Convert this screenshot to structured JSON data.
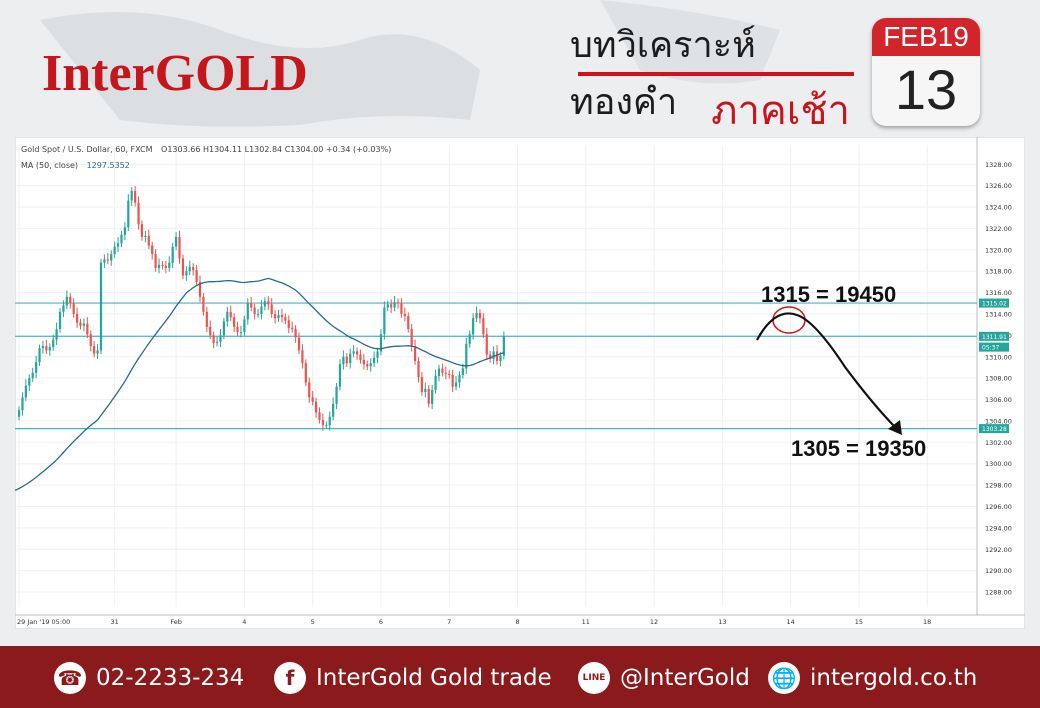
{
  "header": {
    "brand": "InterGOLD",
    "title_th": "บทวิเคราะห์ทองคำ",
    "subtitle_th": "ภาคเช้า",
    "calendar_month": "FEB19",
    "calendar_day": "13"
  },
  "chart_data": {
    "type": "line",
    "symbol_line": "Gold Spot / U.S. Dollar, 60, FXCM",
    "ohlc_text": "O1303.66  H1304.11  L1302.84  C1304.00  +0.34 (+0.03%)",
    "ma_label": "MA (50, close)",
    "ma_value": "1297.5352",
    "y_ticks": [
      "1328.00",
      "1326.00",
      "1324.00",
      "1322.00",
      "1320.00",
      "1318.00",
      "1316.00",
      "1314.00",
      "1312.00",
      "1310.00",
      "1308.00",
      "1306.00",
      "1304.00",
      "1302.00",
      "1300.00",
      "1298.00",
      "1296.00",
      "1294.00",
      "1292.00",
      "1290.00",
      "1288.00"
    ],
    "y_range": [
      1286.6,
      1329.8
    ],
    "x_ticks": [
      {
        "label": "29 Jan '19  05:00",
        "t": 0
      },
      {
        "label": "31",
        "t": 28
      },
      {
        "label": "Feb",
        "t": 46
      },
      {
        "label": "4",
        "t": 66
      },
      {
        "label": "5",
        "t": 86
      },
      {
        "label": "6",
        "t": 106
      },
      {
        "label": "7",
        "t": 126
      },
      {
        "label": "8",
        "t": 146
      },
      {
        "label": "11",
        "t": 166
      },
      {
        "label": "12",
        "t": 186
      },
      {
        "label": "13",
        "t": 206
      },
      {
        "label": "14",
        "t": 226
      },
      {
        "label": "15",
        "t": 246
      },
      {
        "label": "18",
        "t": 266
      }
    ],
    "x_range": [
      -0.6,
      280
    ],
    "price_badges": [
      {
        "label": "1315.02",
        "y": 1315.02,
        "color": "#26a69a"
      },
      {
        "label": "1311.91",
        "y": 1311.91,
        "color": "#26a69a"
      },
      {
        "label": "05:37",
        "y": 1310.9,
        "color": "#26a69a"
      },
      {
        "label": "1303.28",
        "y": 1303.28,
        "color": "#26a69a"
      }
    ],
    "hlines": [
      1315.02,
      1311.91,
      1303.28
    ],
    "close": [
      1305.0,
      1306.2,
      1307.3,
      1308.0,
      1308.5,
      1309.5,
      1310.8,
      1311.0,
      1310.6,
      1310.9,
      1311.6,
      1312.6,
      1314.2,
      1314.8,
      1315.6,
      1315.0,
      1314.0,
      1313.2,
      1312.9,
      1313.1,
      1312.1,
      1311.0,
      1310.3,
      1310.6,
      1318.8,
      1319.1,
      1319.0,
      1319.6,
      1320.3,
      1320.6,
      1321.4,
      1322.1,
      1324.6,
      1325.5,
      1324.4,
      1322.4,
      1321.2,
      1321.3,
      1320.4,
      1319.6,
      1318.3,
      1318.6,
      1318.5,
      1318.3,
      1318.8,
      1320.3,
      1321.2,
      1319.2,
      1317.6,
      1318.0,
      1318.4,
      1318.1,
      1317.0,
      1315.6,
      1314.2,
      1312.8,
      1312.0,
      1311.3,
      1311.4,
      1312.0,
      1313.3,
      1314.2,
      1313.7,
      1312.8,
      1312.3,
      1312.3,
      1313.5,
      1315.0,
      1314.6,
      1314.0,
      1314.0,
      1314.7,
      1315.2,
      1314.9,
      1314.0,
      1313.6,
      1313.9,
      1313.7,
      1313.4,
      1312.7,
      1312.6,
      1311.8,
      1310.6,
      1309.4,
      1307.6,
      1306.2,
      1305.8,
      1304.8,
      1304.1,
      1303.6,
      1303.6,
      1304.4,
      1305.6,
      1307.2,
      1309.3,
      1310.0,
      1309.4,
      1310.3,
      1310.5,
      1310.2,
      1309.7,
      1309.3,
      1309.1,
      1309.4,
      1309.9,
      1310.5,
      1312.1,
      1314.6,
      1314.9,
      1314.6,
      1315.1,
      1315.0,
      1314.0,
      1313.8,
      1312.6,
      1311.0,
      1309.6,
      1308.1,
      1306.7,
      1307.0,
      1305.6,
      1306.9,
      1308.2,
      1308.9,
      1308.5,
      1308.4,
      1308.3,
      1307.2,
      1307.6,
      1308.3,
      1308.9,
      1311.2,
      1312.1,
      1313.6,
      1314.1,
      1313.6,
      1312.1,
      1310.2,
      1309.8,
      1310.5,
      1309.6,
      1310.1,
      1311.9
    ]
  },
  "annotations": {
    "upper": "1315 = 19450",
    "lower": "1305 = 19350"
  },
  "footer": {
    "phone": "02-2233-234",
    "facebook": "InterGold Gold trade",
    "line": "@InterGold",
    "website": "intergold.co.th",
    "phone_icon": "phone-icon",
    "facebook_icon": "facebook-icon",
    "line_icon": "line-icon",
    "globe_icon": "globe-icon",
    "facebook_glyph": "f",
    "line_glyph": "LINE"
  },
  "colors": {
    "brand_red": "#c4161c",
    "footer": "#8b1a1d",
    "up": "#26a69a",
    "down": "#ef5350",
    "ma": "#2a6b8f",
    "hline": "#3fb7c5"
  }
}
